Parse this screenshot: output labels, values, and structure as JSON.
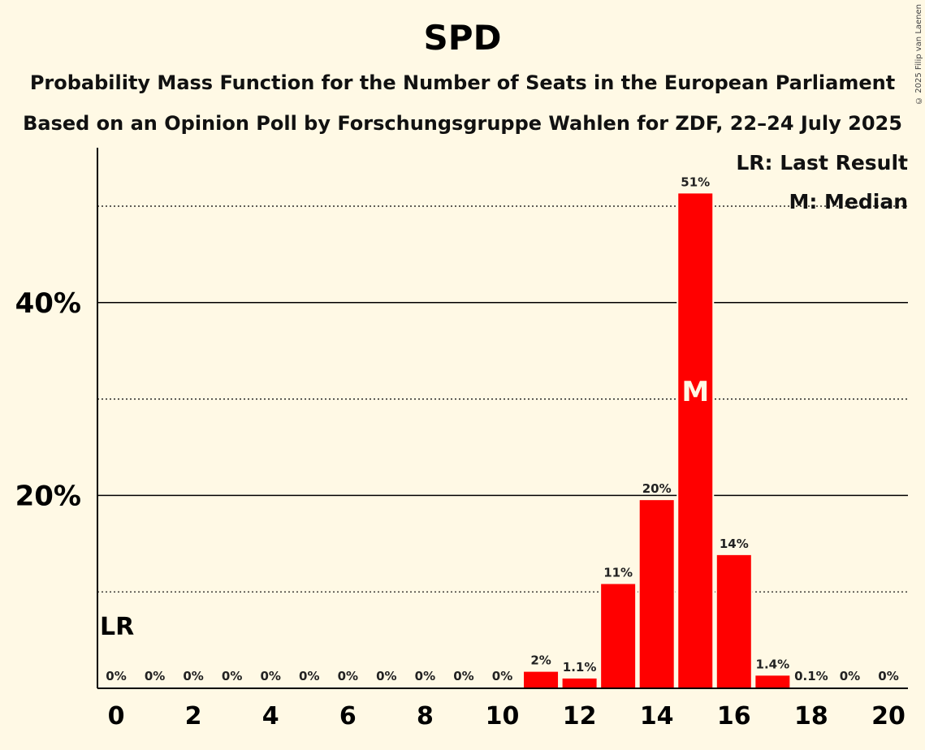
{
  "chart_data": {
    "type": "bar",
    "title": "SPD",
    "subtitle": "Probability Mass Function for the Number of Seats in the European Parliament",
    "subtitle2": "Based on an Opinion Poll by Forschungsgruppe Wahlen for ZDF, 22–24 July 2025",
    "copyright": "© 2025 Filip van Laenen",
    "categories": [
      0,
      1,
      2,
      3,
      4,
      5,
      6,
      7,
      8,
      9,
      10,
      11,
      12,
      13,
      14,
      15,
      16,
      17,
      18,
      19,
      20
    ],
    "values": [
      0,
      0,
      0,
      0,
      0,
      0,
      0,
      0,
      0,
      0,
      0,
      1.8,
      1.1,
      10.9,
      19.6,
      51.4,
      13.9,
      1.4,
      0.1,
      0,
      0
    ],
    "value_labels": [
      "0%",
      "0%",
      "0%",
      "0%",
      "0%",
      "0%",
      "0%",
      "0%",
      "0%",
      "0%",
      "0%",
      "2%",
      "1.1%",
      "11%",
      "20%",
      "51%",
      "14%",
      "1.4%",
      "0.1%",
      "0%",
      "0%"
    ],
    "x_tick_labels": [
      "0",
      "2",
      "4",
      "6",
      "8",
      "10",
      "12",
      "14",
      "16",
      "18",
      "20"
    ],
    "y_tick_labels": [
      "20%",
      "40%"
    ],
    "ylim": [
      0,
      56
    ],
    "major_gridlines": [
      20,
      40
    ],
    "minor_gridlines": [
      10,
      30,
      50
    ],
    "last_result_seat": 0,
    "last_result_label": "LR",
    "median_seat": 15,
    "median_label": "M",
    "legend": [
      "LR: Last Result",
      "M: Median"
    ],
    "legend_position": "top-right",
    "colors": {
      "bar": "#ff0000",
      "background": "#fff9e5",
      "text": "#000000"
    }
  }
}
